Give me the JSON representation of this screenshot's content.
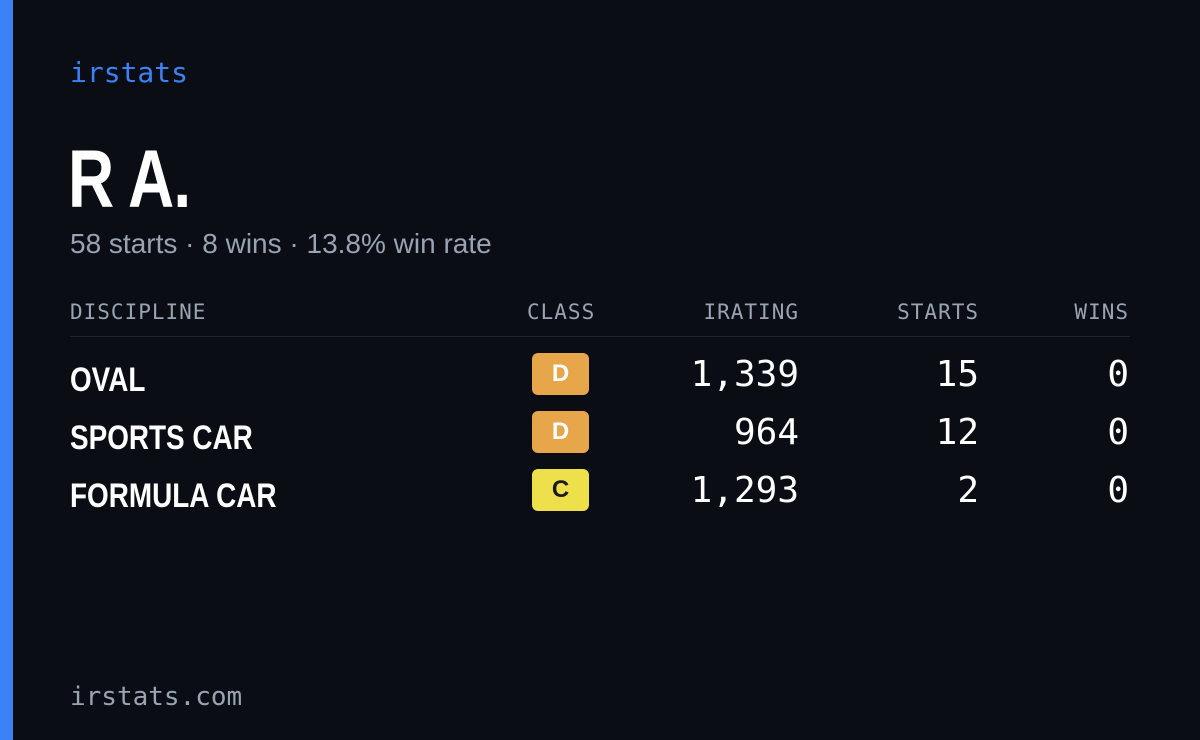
{
  "brand": "irstats",
  "driver": {
    "name": "R A.",
    "summary": "58 starts · 8 wins · 13.8% win rate"
  },
  "table": {
    "headers": {
      "discipline": "DISCIPLINE",
      "class": "CLASS",
      "irating": "IRATING",
      "starts": "STARTS",
      "wins": "WINS"
    },
    "rows": [
      {
        "discipline": "OVAL",
        "class": "D",
        "irating": "1,339",
        "starts": "15",
        "wins": "0"
      },
      {
        "discipline": "SPORTS CAR",
        "class": "D",
        "irating": "964",
        "starts": "12",
        "wins": "0"
      },
      {
        "discipline": "FORMULA CAR",
        "class": "C",
        "irating": "1,293",
        "starts": "2",
        "wins": "0"
      }
    ]
  },
  "class_colors": {
    "D": {
      "bg": "#e8a64a",
      "fg": "#ffffff"
    },
    "C": {
      "bg": "#ede04a",
      "fg": "#1a1a1a"
    }
  },
  "accent_color": "#3b82f6",
  "footer": "irstats.com"
}
